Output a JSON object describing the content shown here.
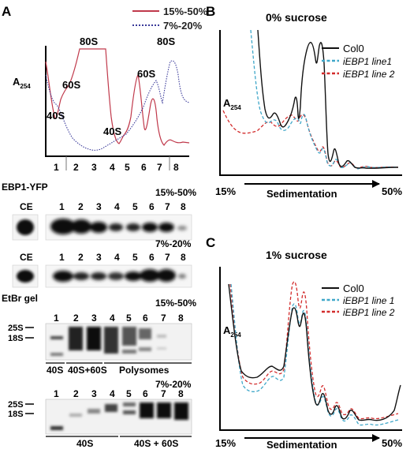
{
  "panels": {
    "A": {
      "letter": "A",
      "legend": [
        {
          "label": "15%-50%",
          "color": "#c0394b"
        },
        {
          "label": "7%-20%",
          "color": "#3a3a9a"
        }
      ],
      "y_label": "A",
      "y_label_sub": "254",
      "peak_labels": [
        "80S",
        "60S",
        "40S",
        "80S",
        "60S",
        "40S"
      ],
      "fractions": [
        "1",
        "2",
        "3",
        "4",
        "5",
        "6",
        "7",
        "8"
      ],
      "blot_title": "EBP1-YFP",
      "blot1_gradient": "15%-50%",
      "blot2_gradient": "7%-20%",
      "ce_label": "CE",
      "gel_title": "EtBr gel",
      "gel1_gradient": "15%-50%",
      "gel2_gradient": "7%-20%",
      "rrna_25s": "25S",
      "rrna_18s": "18S",
      "gel1_groups": [
        "40S",
        "40S+60S",
        "Polysomes"
      ],
      "gel2_groups": [
        "40S",
        "40S + 60S"
      ]
    },
    "B": {
      "letter": "B",
      "title": "0% sucrose",
      "y_label": "A",
      "y_label_sub": "254",
      "legend": [
        {
          "label": "Col0",
          "color": "#111111",
          "style": "solid"
        },
        {
          "label": "iEBP1 line1",
          "color": "#3fa7c9",
          "style": "dashed"
        },
        {
          "label": "iEBP1 line 2",
          "color": "#d22b2b",
          "style": "dashed"
        }
      ],
      "x_start": "15%",
      "x_label": "Sedimentation",
      "x_end": "50%"
    },
    "C": {
      "letter": "C",
      "title": "1% sucrose",
      "y_label": "A",
      "y_label_sub": "254",
      "legend": [
        {
          "label": "Col0",
          "color": "#111111",
          "style": "solid"
        },
        {
          "label": "iEBP1 line 1",
          "color": "#3fa7c9",
          "style": "dashed"
        },
        {
          "label": "iEBP1 line 2",
          "color": "#d22b2b",
          "style": "dashed"
        }
      ],
      "x_start": "15%",
      "x_label": "Sedimentation",
      "x_end": "50%"
    }
  }
}
